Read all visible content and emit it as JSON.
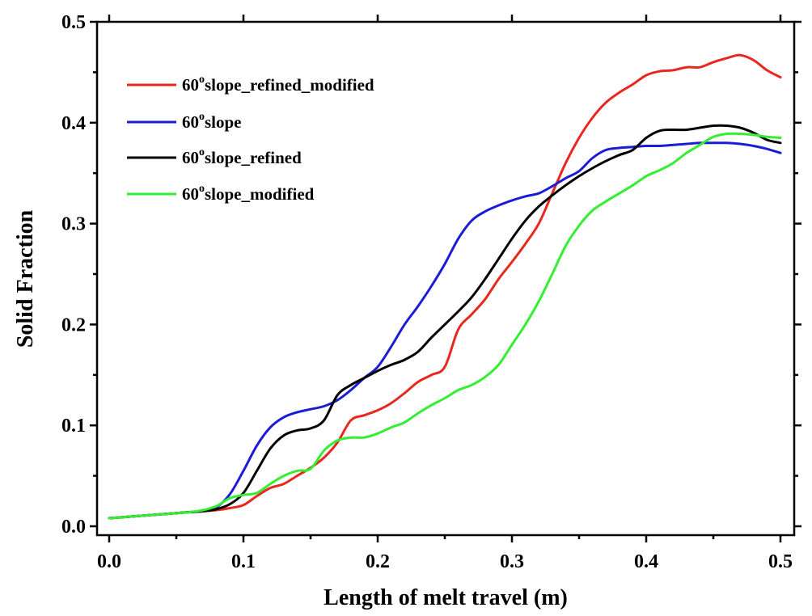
{
  "chart_data": {
    "type": "line",
    "title": "",
    "xlabel": "Length of melt travel (m)",
    "ylabel": "Solid Fraction",
    "xlim": [
      0,
      0.5
    ],
    "ylim": [
      0,
      0.5
    ],
    "xticks": [
      "0.0",
      "0.1",
      "0.2",
      "0.3",
      "0.4",
      "0.5"
    ],
    "yticks": [
      "0.0",
      "0.1",
      "0.2",
      "0.3",
      "0.4",
      "0.5"
    ],
    "grid": false,
    "legend_position": "top-left",
    "x": [
      0.0,
      0.01,
      0.02,
      0.03,
      0.04,
      0.05,
      0.06,
      0.07,
      0.08,
      0.09,
      0.1,
      0.11,
      0.12,
      0.13,
      0.14,
      0.15,
      0.16,
      0.17,
      0.18,
      0.19,
      0.2,
      0.21,
      0.22,
      0.23,
      0.24,
      0.25,
      0.26,
      0.27,
      0.28,
      0.29,
      0.3,
      0.31,
      0.32,
      0.33,
      0.34,
      0.35,
      0.36,
      0.37,
      0.38,
      0.39,
      0.4,
      0.41,
      0.42,
      0.43,
      0.44,
      0.45,
      0.46,
      0.47,
      0.48,
      0.49,
      0.5
    ],
    "series": [
      {
        "label_num": "60",
        "label_sup": "o",
        "label_rest": "slope_refined_modified",
        "color": "#e8271f",
        "values": [
          0.008,
          0.009,
          0.01,
          0.011,
          0.012,
          0.013,
          0.014,
          0.015,
          0.016,
          0.018,
          0.021,
          0.03,
          0.038,
          0.042,
          0.05,
          0.058,
          0.068,
          0.083,
          0.105,
          0.11,
          0.115,
          0.122,
          0.132,
          0.143,
          0.15,
          0.158,
          0.195,
          0.21,
          0.225,
          0.245,
          0.262,
          0.28,
          0.3,
          0.33,
          0.36,
          0.385,
          0.405,
          0.42,
          0.43,
          0.438,
          0.447,
          0.451,
          0.452,
          0.455,
          0.455,
          0.46,
          0.464,
          0.467,
          0.462,
          0.452,
          0.445
        ]
      },
      {
        "label_num": "60",
        "label_sup": "o",
        "label_rest": "slope",
        "color": "#1c1cd6",
        "values": [
          0.008,
          0.009,
          0.01,
          0.011,
          0.012,
          0.013,
          0.014,
          0.015,
          0.019,
          0.032,
          0.055,
          0.08,
          0.098,
          0.108,
          0.113,
          0.116,
          0.119,
          0.125,
          0.135,
          0.147,
          0.158,
          0.178,
          0.2,
          0.218,
          0.238,
          0.26,
          0.285,
          0.303,
          0.312,
          0.318,
          0.323,
          0.327,
          0.33,
          0.337,
          0.345,
          0.352,
          0.365,
          0.373,
          0.375,
          0.376,
          0.377,
          0.377,
          0.378,
          0.379,
          0.38,
          0.38,
          0.38,
          0.379,
          0.377,
          0.374,
          0.37
        ]
      },
      {
        "label_num": "60",
        "label_sup": "o",
        "label_rest": "slope_refined",
        "color": "#000000",
        "values": [
          0.008,
          0.009,
          0.01,
          0.011,
          0.012,
          0.013,
          0.014,
          0.015,
          0.017,
          0.022,
          0.033,
          0.055,
          0.077,
          0.09,
          0.095,
          0.097,
          0.105,
          0.13,
          0.14,
          0.147,
          0.154,
          0.16,
          0.165,
          0.173,
          0.187,
          0.2,
          0.213,
          0.227,
          0.245,
          0.265,
          0.285,
          0.303,
          0.317,
          0.328,
          0.338,
          0.347,
          0.355,
          0.362,
          0.368,
          0.373,
          0.385,
          0.392,
          0.393,
          0.393,
          0.395,
          0.397,
          0.397,
          0.395,
          0.39,
          0.383,
          0.38
        ]
      },
      {
        "label_num": "60",
        "label_sup": "o",
        "label_rest": "slope_modified",
        "color": "#33ee33",
        "values": [
          0.008,
          0.009,
          0.01,
          0.011,
          0.012,
          0.013,
          0.014,
          0.016,
          0.02,
          0.028,
          0.031,
          0.033,
          0.042,
          0.05,
          0.055,
          0.057,
          0.075,
          0.085,
          0.088,
          0.088,
          0.092,
          0.098,
          0.103,
          0.112,
          0.12,
          0.127,
          0.135,
          0.14,
          0.148,
          0.16,
          0.18,
          0.2,
          0.223,
          0.25,
          0.278,
          0.298,
          0.313,
          0.322,
          0.33,
          0.338,
          0.347,
          0.353,
          0.36,
          0.37,
          0.378,
          0.386,
          0.389,
          0.389,
          0.388,
          0.386,
          0.385
        ]
      }
    ]
  }
}
